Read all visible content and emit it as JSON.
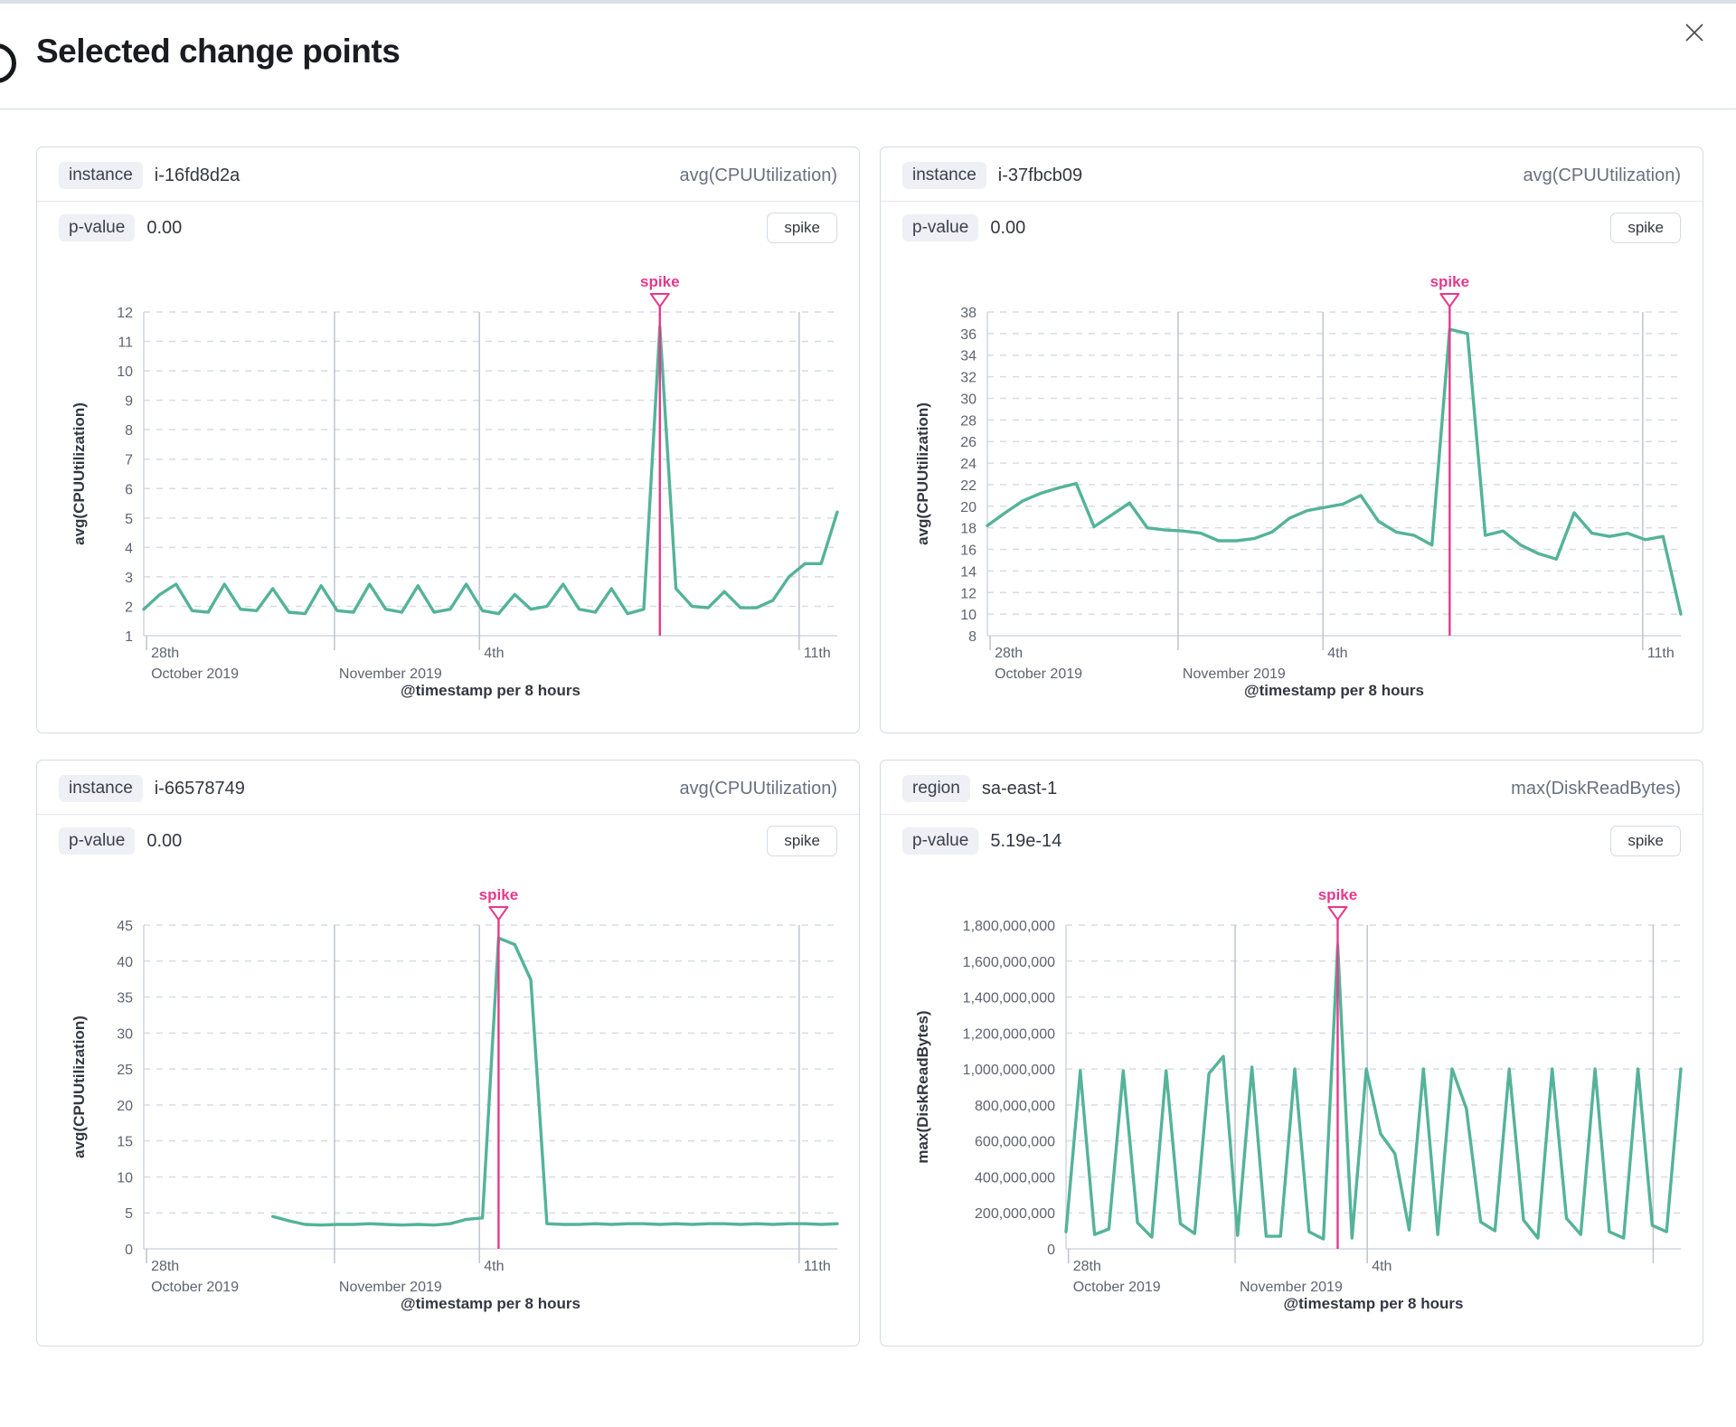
{
  "modal": {
    "title": "Selected change points"
  },
  "colors": {
    "line": "#54B399",
    "annotation": "#E6398B",
    "grid_dashed": "#d6dbe6",
    "grid_vertical": "#c3c7cf",
    "axis_line": "#d0d6e0",
    "tick_text": "#5d6471",
    "axis_title_text": "#343741"
  },
  "cards": [
    {
      "key_label": "instance",
      "key_value": "i-16fd8d2a",
      "metric": "avg(CPUUtilization)",
      "p_label": "p-value",
      "p_value": "0.00",
      "badge": "spike"
    },
    {
      "key_label": "instance",
      "key_value": "i-37fbcb09",
      "metric": "avg(CPUUtilization)",
      "p_label": "p-value",
      "p_value": "0.00",
      "badge": "spike"
    },
    {
      "key_label": "instance",
      "key_value": "i-66578749",
      "metric": "avg(CPUUtilization)",
      "p_label": "p-value",
      "p_value": "0.00",
      "badge": "spike"
    },
    {
      "key_label": "region",
      "key_value": "sa-east-1",
      "metric": "max(DiskReadBytes)",
      "p_label": "p-value",
      "p_value": "5.19e-14",
      "badge": "spike"
    }
  ],
  "chart_data": [
    {
      "type": "line",
      "title": "instance i-16fd8d2a",
      "series_name": "avg(CPUUtilization)",
      "ylabel": "avg(CPUUtilization)",
      "xlabel": "@timestamp per 8 hours",
      "ylim": [
        1,
        12
      ],
      "ytick_step": 1,
      "ytick_format": "plain",
      "grid": true,
      "x_ticks": [
        {
          "frac": 0.004,
          "line1": "28th",
          "line2": "October 2019",
          "gridline": false
        },
        {
          "frac": 0.275,
          "line1": "",
          "line2": "November 2019",
          "gridline": true
        },
        {
          "frac": 0.484,
          "line1": "4th",
          "line2": "",
          "gridline": true
        },
        {
          "frac": 0.945,
          "line1": "11th",
          "line2": "",
          "gridline": true
        }
      ],
      "values": [
        1.9,
        2.4,
        2.75,
        1.85,
        1.8,
        2.75,
        1.9,
        1.85,
        2.6,
        1.8,
        1.75,
        2.7,
        1.85,
        1.8,
        2.75,
        1.9,
        1.8,
        2.7,
        1.8,
        1.9,
        2.75,
        1.85,
        1.75,
        2.4,
        1.9,
        2.0,
        2.75,
        1.9,
        1.8,
        2.6,
        1.75,
        1.9,
        11.5,
        2.6,
        2.0,
        1.95,
        2.5,
        1.95,
        1.95,
        2.2,
        3.0,
        3.45,
        3.45,
        5.2
      ],
      "annotation": {
        "label": "spike",
        "index": 32
      }
    },
    {
      "type": "line",
      "title": "instance i-37fbcb09",
      "series_name": "avg(CPUUtilization)",
      "ylabel": "avg(CPUUtilization)",
      "xlabel": "@timestamp per 8 hours",
      "ylim": [
        8,
        38
      ],
      "ytick_step": 2,
      "ytick_format": "plain",
      "grid": true,
      "x_ticks": [
        {
          "frac": 0.004,
          "line1": "28th",
          "line2": "October 2019",
          "gridline": false
        },
        {
          "frac": 0.275,
          "line1": "",
          "line2": "November 2019",
          "gridline": true
        },
        {
          "frac": 0.484,
          "line1": "4th",
          "line2": "",
          "gridline": true
        },
        {
          "frac": 0.945,
          "line1": "11th",
          "line2": "",
          "gridline": true
        }
      ],
      "values": [
        18.2,
        19.4,
        20.5,
        21.2,
        21.7,
        22.1,
        18.1,
        19.2,
        20.3,
        18.0,
        17.8,
        17.7,
        17.5,
        16.8,
        16.8,
        17.0,
        17.6,
        18.9,
        19.6,
        19.9,
        20.2,
        21.0,
        18.6,
        17.6,
        17.3,
        16.4,
        36.4,
        36.0,
        17.3,
        17.7,
        16.4,
        15.6,
        15.1,
        19.4,
        17.5,
        17.2,
        17.5,
        16.9,
        17.2,
        10.0
      ],
      "annotation": {
        "label": "spike",
        "index": 26
      }
    },
    {
      "type": "line",
      "title": "instance i-66578749",
      "series_name": "avg(CPUUtilization)",
      "ylabel": "avg(CPUUtilization)",
      "xlabel": "@timestamp per 8 hours",
      "ylim": [
        0,
        45
      ],
      "ytick_step": 5,
      "ytick_format": "plain",
      "grid": true,
      "x_ticks": [
        {
          "frac": 0.004,
          "line1": "28th",
          "line2": "October 2019",
          "gridline": false
        },
        {
          "frac": 0.275,
          "line1": "",
          "line2": "November 2019",
          "gridline": true
        },
        {
          "frac": 0.484,
          "line1": "4th",
          "line2": "",
          "gridline": true
        },
        {
          "frac": 0.945,
          "line1": "11th",
          "line2": "",
          "gridline": true
        }
      ],
      "values": [
        null,
        null,
        null,
        null,
        null,
        null,
        null,
        null,
        4.5,
        3.9,
        3.4,
        3.3,
        3.4,
        3.4,
        3.5,
        3.4,
        3.3,
        3.4,
        3.3,
        3.5,
        4.1,
        4.3,
        43.2,
        42.3,
        37.4,
        3.5,
        3.4,
        3.4,
        3.5,
        3.4,
        3.5,
        3.5,
        3.4,
        3.5,
        3.4,
        3.5,
        3.5,
        3.4,
        3.5,
        3.4,
        3.5,
        3.5,
        3.4,
        3.5
      ],
      "annotation": {
        "label": "spike",
        "index": 22
      }
    },
    {
      "type": "line",
      "title": "region sa-east-1",
      "series_name": "max(DiskReadBytes)",
      "ylabel": "max(DiskReadBytes)",
      "xlabel": "@timestamp per 8 hours",
      "ylim": [
        0,
        1800000000
      ],
      "ytick_step": 200000000,
      "ytick_format": "comma",
      "grid": true,
      "x_ticks": [
        {
          "frac": 0.004,
          "line1": "28th",
          "line2": "October 2019",
          "gridline": false
        },
        {
          "frac": 0.275,
          "line1": "",
          "line2": "November 2019",
          "gridline": true
        },
        {
          "frac": 0.49,
          "line1": "4th",
          "line2": "",
          "gridline": true
        },
        {
          "frac": 0.955,
          "line1": "",
          "line2": "",
          "gridline": true
        }
      ],
      "values": [
        95000000,
        990000000,
        80000000,
        110000000,
        990000000,
        145000000,
        65000000,
        990000000,
        140000000,
        85000000,
        975000000,
        1070000000,
        75000000,
        1010000000,
        70000000,
        70000000,
        1000000000,
        95000000,
        55000000,
        1690000000,
        60000000,
        1000000000,
        640000000,
        530000000,
        105000000,
        1000000000,
        80000000,
        1000000000,
        780000000,
        150000000,
        100000000,
        1000000000,
        160000000,
        60000000,
        1000000000,
        170000000,
        80000000,
        1000000000,
        95000000,
        60000000,
        1000000000,
        130000000,
        95000000,
        1000000000
      ],
      "annotation": {
        "label": "spike",
        "index": 19
      }
    }
  ]
}
